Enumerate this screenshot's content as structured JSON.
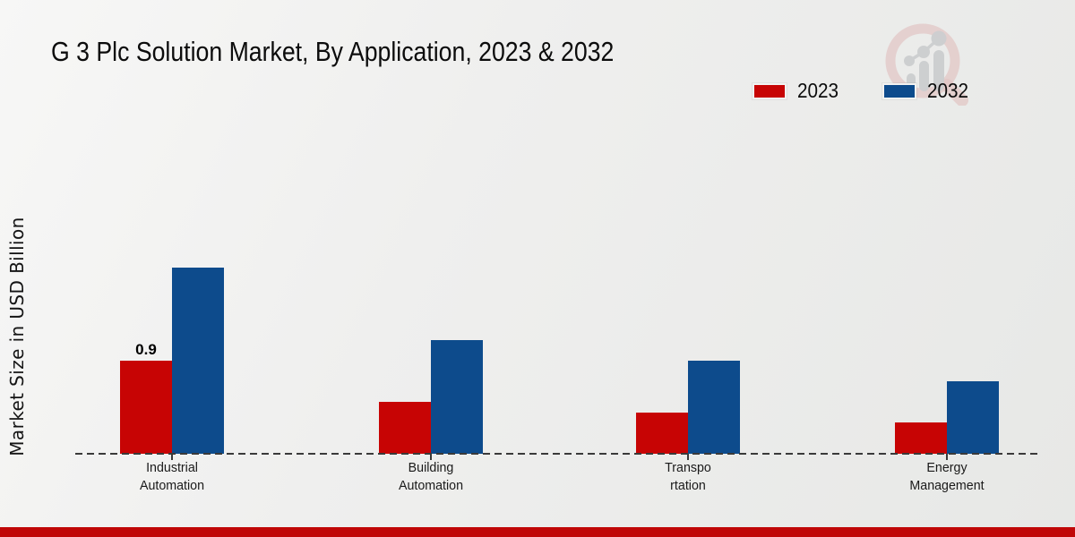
{
  "page": {
    "title": "G 3 Plc Solution Market, By Application, 2023 & 2032",
    "y_axis_label": "Market Size in USD Billion"
  },
  "legend": [
    {
      "label": "2023",
      "color": "#c70404"
    },
    {
      "label": "2032",
      "color": "#0d4b8c"
    }
  ],
  "colors": {
    "series_2023": "#c70404",
    "series_2032": "#0d4b8c",
    "axis_dash": "#3a3a3a",
    "bottom_strip": "#c00707",
    "background_light": "#f7f7f6",
    "background_dark": "#e7e8e6"
  },
  "branding": {
    "watermark_icon": "magnifier-growth-chart-logo",
    "watermark_ring_color": "#d9a3a3",
    "watermark_bars_color": "#bdbfc2"
  },
  "chart_data": {
    "type": "bar",
    "title": "G 3 Plc Solution Market, By Application, 2023 & 2032",
    "xlabel": "",
    "ylabel": "Market Size in USD Billion",
    "categories": [
      "Industrial Automation",
      "Building Automation",
      "Transportation",
      "Energy Management"
    ],
    "category_display_lines": [
      [
        "Industrial",
        "Automation"
      ],
      [
        "Building",
        "Automation"
      ],
      [
        "Transpo",
        "rtation"
      ],
      [
        "Energy",
        "Management"
      ]
    ],
    "series": [
      {
        "name": "2023",
        "color": "#c70404",
        "values": [
          0.9,
          0.5,
          0.4,
          0.3
        ],
        "data_labels": [
          "0.9",
          null,
          null,
          null
        ]
      },
      {
        "name": "2032",
        "color": "#0d4b8c",
        "values": [
          1.8,
          1.1,
          0.9,
          0.7
        ],
        "data_labels": [
          null,
          null,
          null,
          null
        ]
      }
    ],
    "ylim": [
      0,
      2.0
    ],
    "grid": false,
    "axis_style": "dashed horizontal baseline only, no y-axis ticks",
    "legend_position": "top-right",
    "units": "USD Billion"
  }
}
